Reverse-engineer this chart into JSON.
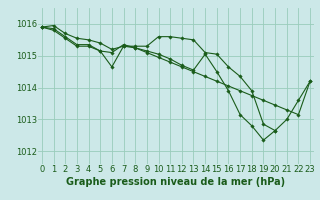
{
  "background_color": "#cce8e8",
  "grid_color": "#99ccbb",
  "line_color": "#1a5c1a",
  "marker_color": "#1a5c1a",
  "title": "Graphe pression niveau de la mer (hPa)",
  "tick_fontsize": 6.0,
  "title_fontsize": 7.0,
  "ylim": [
    1011.6,
    1016.5
  ],
  "xlim": [
    -0.3,
    23.3
  ],
  "yticks": [
    1012,
    1013,
    1014,
    1015,
    1016
  ],
  "xticks": [
    0,
    1,
    2,
    3,
    4,
    5,
    6,
    7,
    8,
    9,
    10,
    11,
    12,
    13,
    14,
    15,
    16,
    17,
    18,
    19,
    20,
    21,
    22,
    23
  ],
  "series": [
    {
      "x": [
        0,
        1,
        2,
        3,
        4,
        5,
        6,
        7,
        8,
        9,
        10,
        11,
        12,
        13,
        14,
        15,
        16,
        17,
        18,
        19,
        20,
        21,
        22,
        23
      ],
      "y": [
        1015.9,
        1015.95,
        1015.7,
        1015.55,
        1015.5,
        1015.4,
        1015.2,
        1015.3,
        1015.3,
        1015.3,
        1015.6,
        1015.6,
        1015.55,
        1015.5,
        1015.1,
        1015.05,
        1014.65,
        1014.35,
        1013.9,
        1012.85,
        1012.65,
        1013.0,
        1013.6,
        1014.2
      ]
    },
    {
      "x": [
        0,
        1,
        2,
        3,
        4,
        5,
        6,
        7,
        8,
        9,
        10,
        11,
        12,
        13,
        14,
        15,
        16,
        17,
        18,
        19,
        20
      ],
      "y": [
        1015.9,
        1015.85,
        1015.6,
        1015.35,
        1015.35,
        1015.15,
        1014.65,
        1015.3,
        1015.25,
        1015.15,
        1015.05,
        1014.9,
        1014.7,
        1014.55,
        1015.05,
        1014.5,
        1013.9,
        1013.15,
        1012.8,
        1012.35,
        1012.65
      ]
    },
    {
      "x": [
        0,
        1,
        2,
        3,
        4,
        5,
        6,
        7,
        8,
        9,
        10,
        11,
        12,
        13,
        14,
        15,
        16,
        17,
        18,
        19,
        20,
        21,
        22,
        23
      ],
      "y": [
        1015.9,
        1015.8,
        1015.55,
        1015.3,
        1015.3,
        1015.15,
        1015.1,
        1015.35,
        1015.25,
        1015.1,
        1014.95,
        1014.8,
        1014.65,
        1014.5,
        1014.35,
        1014.2,
        1014.05,
        1013.9,
        1013.75,
        1013.6,
        1013.45,
        1013.3,
        1013.15,
        1014.2
      ]
    }
  ]
}
